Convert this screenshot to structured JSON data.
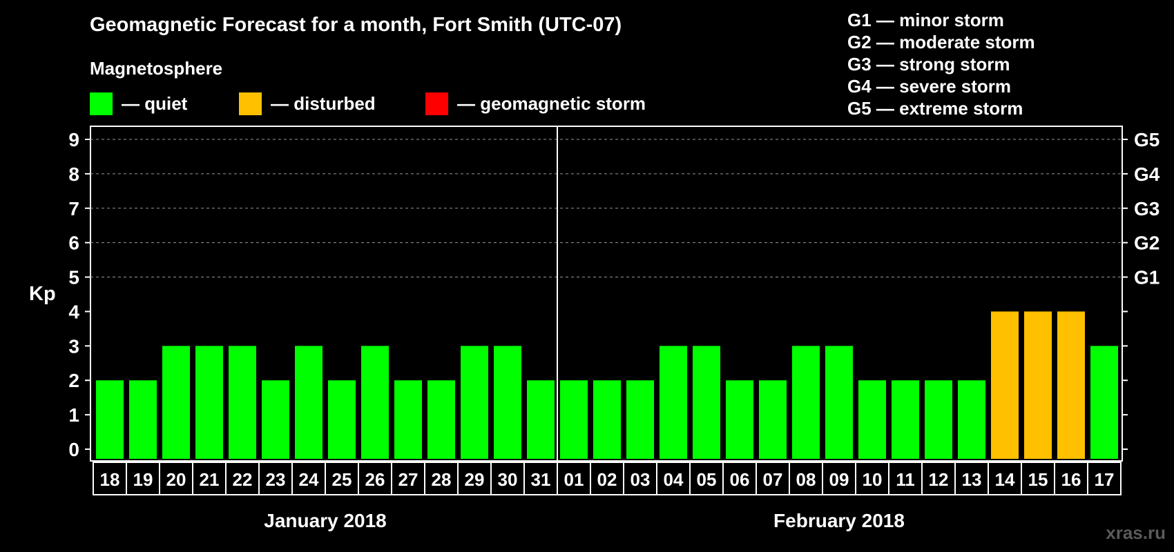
{
  "chart_data": {
    "type": "bar",
    "title": "Geomagnetic Forecast for a month, Fort Smith (UTC-07)",
    "ylabel": "Kp",
    "ylim": [
      0,
      9
    ],
    "yticks": [
      "0",
      "1",
      "2",
      "3",
      "4",
      "5",
      "6",
      "7",
      "8",
      "9"
    ],
    "right_axis_labels": [
      {
        "kp": 5,
        "label": "G1"
      },
      {
        "kp": 6,
        "label": "G2"
      },
      {
        "kp": 7,
        "label": "G3"
      },
      {
        "kp": 8,
        "label": "G4"
      },
      {
        "kp": 9,
        "label": "G5"
      }
    ],
    "categories": [
      "18",
      "19",
      "20",
      "21",
      "22",
      "23",
      "24",
      "25",
      "26",
      "27",
      "28",
      "29",
      "30",
      "31",
      "01",
      "02",
      "03",
      "04",
      "05",
      "06",
      "07",
      "08",
      "09",
      "10",
      "11",
      "12",
      "13",
      "14",
      "15",
      "16",
      "17"
    ],
    "values": [
      2,
      2,
      3,
      3,
      3,
      2,
      3,
      2,
      3,
      2,
      2,
      3,
      3,
      2,
      2,
      2,
      2,
      3,
      3,
      2,
      2,
      3,
      3,
      2,
      2,
      2,
      2,
      4,
      4,
      4,
      3
    ],
    "months": [
      {
        "label": "January 2018",
        "start": 0,
        "count": 14
      },
      {
        "label": "February 2018",
        "start": 14,
        "count": 17
      }
    ],
    "grid": true,
    "colors": {
      "quiet": "#00ff00",
      "disturbed": "#ffc000",
      "storm": "#ff0000"
    },
    "thresholds": {
      "disturbed_min": 4,
      "storm_min": 5
    }
  },
  "legend": {
    "heading": "Magnetosphere",
    "items": [
      {
        "label": "— quiet",
        "color": "#00ff00"
      },
      {
        "label": "— disturbed",
        "color": "#ffc000"
      },
      {
        "label": "— geomagnetic storm",
        "color": "#ff0000"
      }
    ]
  },
  "storm_scale": [
    "G1 — minor storm",
    "G2 — moderate storm",
    "G3 — strong storm",
    "G4 — severe storm",
    "G5 — extreme storm"
  ],
  "watermark": "xras.ru"
}
